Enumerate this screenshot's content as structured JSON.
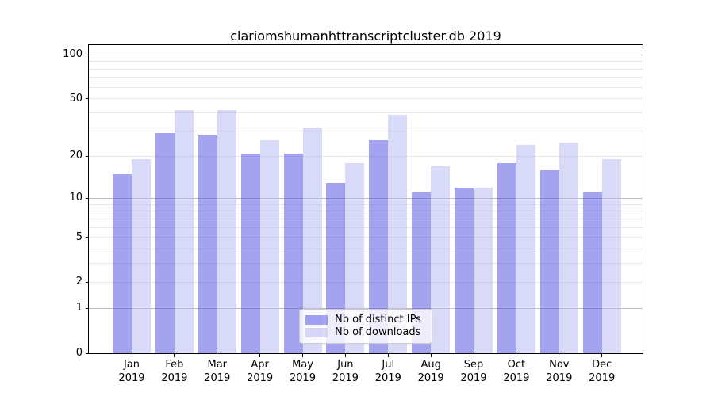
{
  "title": "clariomshumanhttranscriptcluster.db 2019",
  "legend": {
    "items": [
      {
        "label": "Nb of distinct IPs",
        "color": "rgba(88,88,228,0.55)",
        "solid_hex": "#a3a3f0"
      },
      {
        "label": "Nb of downloads",
        "color": "rgba(186,186,243,0.55)",
        "solid_hex": "#d9d9f8"
      }
    ]
  },
  "y_axis": {
    "tick_labels": [
      "100",
      "50",
      "20",
      "10",
      "5",
      "2",
      "1",
      "0"
    ]
  },
  "chart_data": {
    "type": "bar",
    "title": "clariomshumanhttranscriptcluster.db 2019",
    "categories": [
      "Jan 2019",
      "Feb 2019",
      "Mar 2019",
      "Apr 2019",
      "May 2019",
      "Jun 2019",
      "Jul 2019",
      "Aug 2019",
      "Sep 2019",
      "Oct 2019",
      "Nov 2019",
      "Dec 2019"
    ],
    "categories_lines": [
      [
        "Jan",
        "2019"
      ],
      [
        "Feb",
        "2019"
      ],
      [
        "Mar",
        "2019"
      ],
      [
        "Apr",
        "2019"
      ],
      [
        "May",
        "2019"
      ],
      [
        "Jun",
        "2019"
      ],
      [
        "Jul",
        "2019"
      ],
      [
        "Aug",
        "2019"
      ],
      [
        "Sep",
        "2019"
      ],
      [
        "Oct",
        "2019"
      ],
      [
        "Nov",
        "2019"
      ],
      [
        "Dec",
        "2019"
      ]
    ],
    "series": [
      {
        "name": "Nb of distinct IPs",
        "values": [
          15,
          29,
          28,
          21,
          21,
          13,
          26,
          11,
          12,
          18,
          16,
          11
        ],
        "fill": "rgba(88,88,228,0.55)",
        "solid_hex": "#a3a3f0"
      },
      {
        "name": "Nb of downloads",
        "values": [
          19,
          42,
          42,
          26,
          32,
          18,
          39,
          17,
          12,
          24,
          25,
          19
        ],
        "fill": "rgba(186,186,243,0.55)",
        "solid_hex": "#d9d9f8"
      }
    ],
    "y_scale": "log10(value+1)",
    "y_ticks": [
      0,
      1,
      2,
      5,
      10,
      20,
      50,
      100
    ],
    "y_minor_gridlines": [
      2,
      3,
      4,
      5,
      6,
      7,
      8,
      9,
      20,
      30,
      40,
      50,
      60,
      70,
      80,
      90
    ],
    "y_major_gridlines": [
      1,
      10,
      100
    ],
    "ylim": [
      0,
      116
    ],
    "grid": "horizontal",
    "legend_position": "inside lower-center",
    "xlabel": "",
    "ylabel": ""
  }
}
